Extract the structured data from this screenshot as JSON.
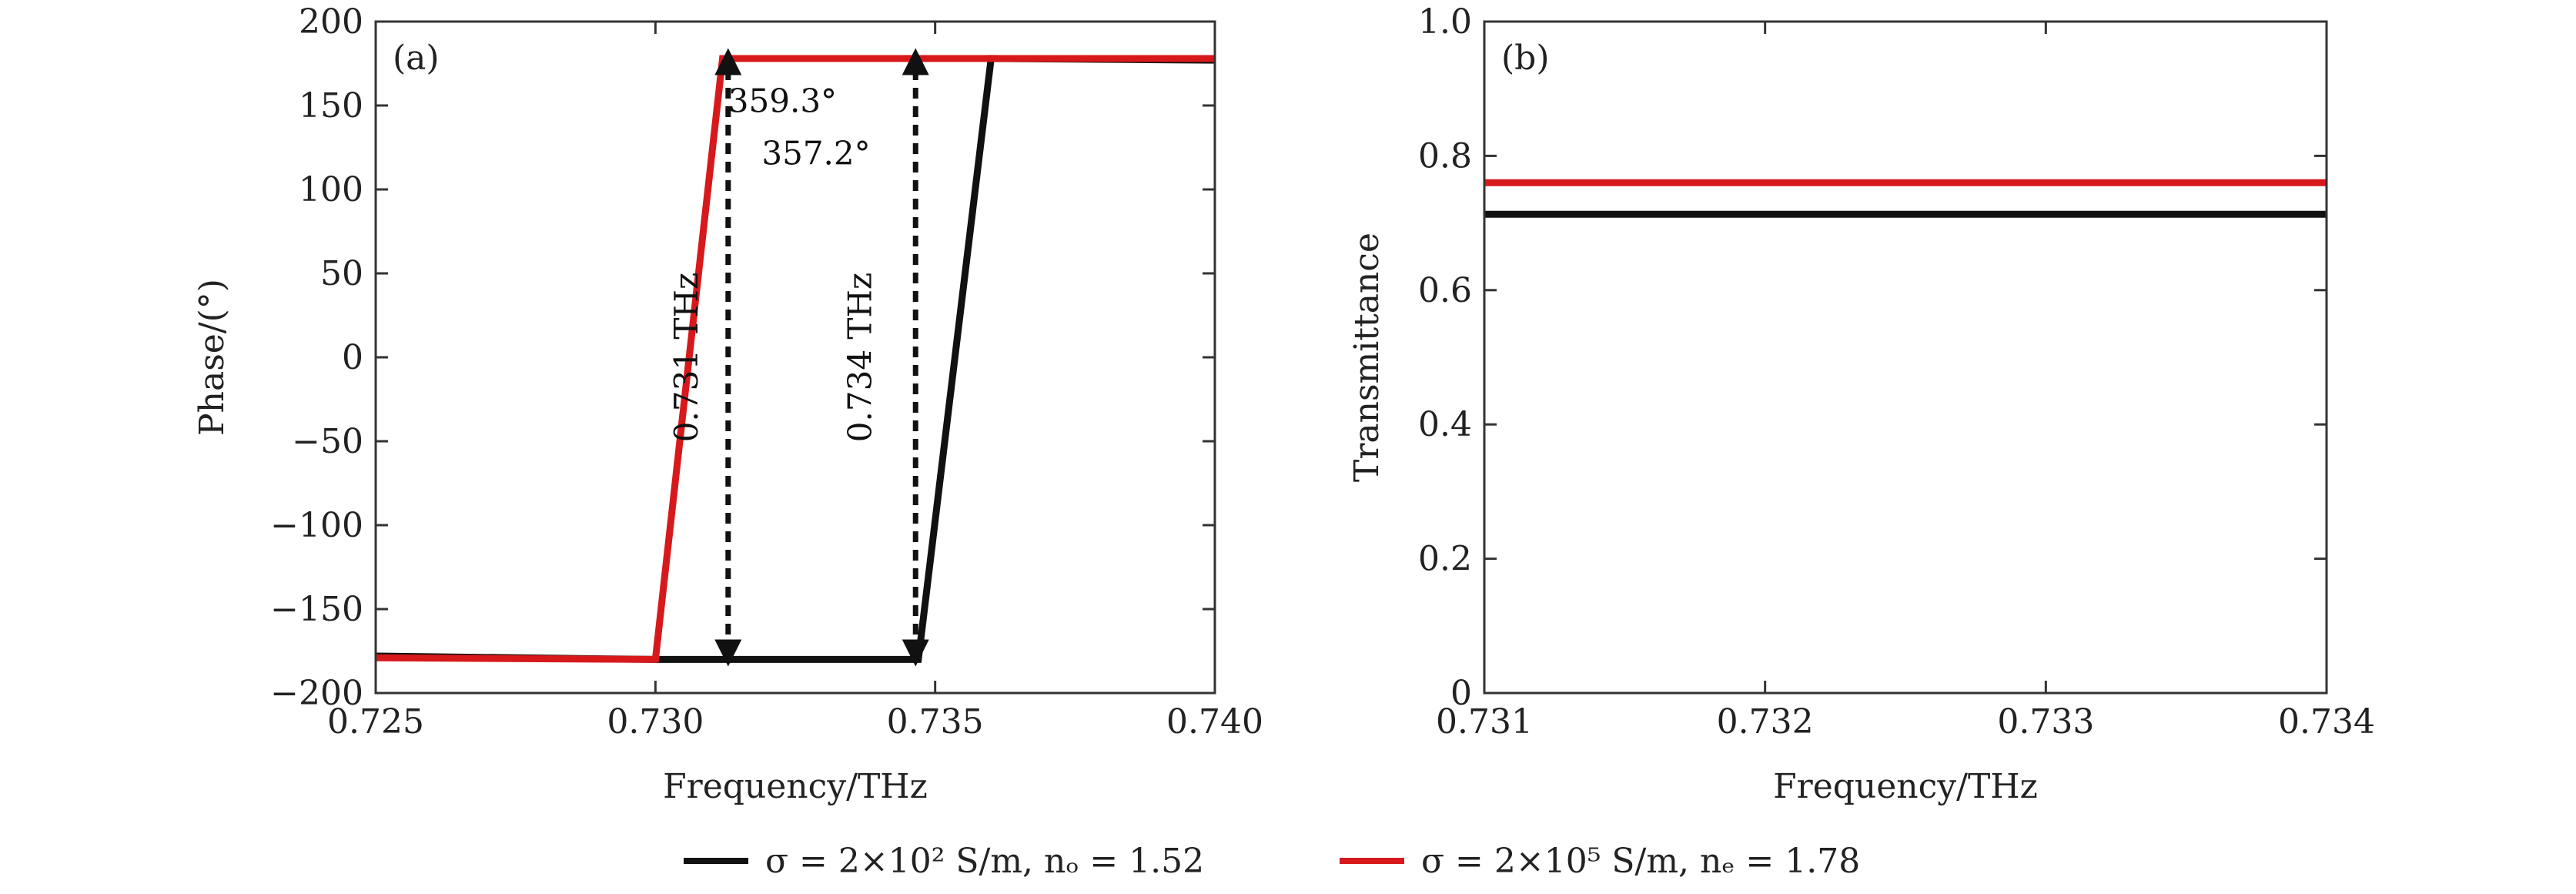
{
  "colors": {
    "black_series": "#111111",
    "red_series": "#d7191c",
    "axis": "#333333"
  },
  "legend": [
    {
      "label": "σ = 2×10² S/m, nₒ = 1.52",
      "color": "#111111"
    },
    {
      "label": "σ = 2×10⁵ S/m, nₑ = 1.78",
      "color": "#d7191c"
    }
  ],
  "chart_data": [
    {
      "type": "line",
      "panel_label": "(a)",
      "xlabel": "Frequency/THz",
      "ylabel": "Phase/(°)",
      "xlim": [
        0.725,
        0.74
      ],
      "ylim": [
        -200,
        200
      ],
      "x_ticks": [
        0.725,
        0.73,
        0.735,
        0.74
      ],
      "x_tick_labels": [
        "0.725",
        "0.730",
        "0.735",
        "0.740"
      ],
      "y_ticks": [
        200,
        150,
        100,
        50,
        0,
        -50,
        -100,
        -150,
        -200
      ],
      "y_tick_labels": [
        "200",
        "150",
        "100",
        "50",
        "0",
        "−50",
        "−100",
        "−150",
        "−200"
      ],
      "series": [
        {
          "name": "σ = 2×10² S/m, nₒ = 1.52",
          "color": "#111111",
          "x": [
            0.725,
            0.73,
            0.7347,
            0.736,
            0.74
          ],
          "y": [
            -178,
            -180,
            -180,
            178,
            177
          ]
        },
        {
          "name": "σ = 2×10⁵ S/m, nₑ = 1.78",
          "color": "#d7191c",
          "x": [
            0.725,
            0.73,
            0.7312,
            0.735,
            0.74
          ],
          "y": [
            -179,
            -180,
            178,
            178,
            178
          ]
        }
      ],
      "annotations": [
        {
          "text": "359.3°",
          "x": 0.7313,
          "y": 146
        },
        {
          "text": "357.2°",
          "x": 0.7319,
          "y": 115
        },
        {
          "text": "0.731 THz",
          "x": 0.731,
          "y": 0
        },
        {
          "text": "0.734 THz",
          "x": 0.7341,
          "y": 0
        }
      ],
      "arrows": [
        {
          "x": 0.7313,
          "y_top": 178,
          "y_bottom": -178
        },
        {
          "x": 0.73465,
          "y_top": 178,
          "y_bottom": -178
        }
      ]
    },
    {
      "type": "line",
      "panel_label": "(b)",
      "xlabel": "Frequency/THz",
      "ylabel": "Transmittance",
      "xlim": [
        0.731,
        0.734
      ],
      "ylim": [
        0,
        1.0
      ],
      "x_ticks": [
        0.731,
        0.732,
        0.733,
        0.734
      ],
      "x_tick_labels": [
        "0.731",
        "0.732",
        "0.733",
        "0.734"
      ],
      "y_ticks": [
        1.0,
        0.8,
        0.6,
        0.4,
        0.2,
        0
      ],
      "y_tick_labels": [
        "1.0",
        "0.8",
        "0.6",
        "0.4",
        "0.2",
        "0"
      ],
      "series": [
        {
          "name": "σ = 2×10² S/m, nₒ = 1.52",
          "color": "#111111",
          "x": [
            0.731,
            0.734
          ],
          "y": [
            0.713,
            0.713
          ]
        },
        {
          "name": "σ = 2×10⁵ S/m, nₑ = 1.78",
          "color": "#d7191c",
          "x": [
            0.731,
            0.734
          ],
          "y": [
            0.76,
            0.76
          ]
        }
      ]
    }
  ]
}
